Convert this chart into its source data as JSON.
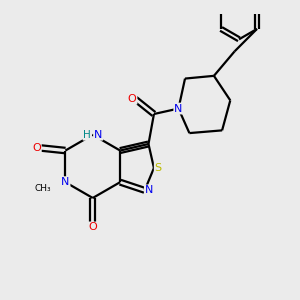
{
  "background_color": "#ebebeb",
  "bond_color": "#000000",
  "N_color": "#0000ee",
  "O_color": "#ee0000",
  "S_color": "#bbbb00",
  "H_color": "#008888",
  "figsize": [
    3.0,
    3.0
  ],
  "dpi": 100,
  "lw": 1.6,
  "fontsize": 8.0,
  "xlim": [
    -2.2,
    3.2
  ],
  "ylim": [
    -2.5,
    2.5
  ]
}
